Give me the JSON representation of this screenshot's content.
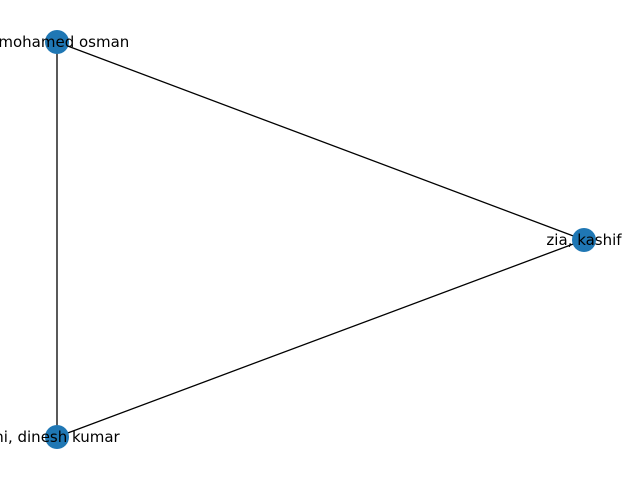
{
  "graph": {
    "node_color": "#1f77b4",
    "edge_color": "#000000",
    "nodes": [
      {
        "id": "n1",
        "label": "i, mohamed osman"
      },
      {
        "id": "n2",
        "label": "zia, kashif"
      },
      {
        "id": "n3",
        "label": "ni, dinesh kumar"
      }
    ],
    "edges": [
      {
        "source": "n1",
        "target": "n2"
      },
      {
        "source": "n1",
        "target": "n3"
      },
      {
        "source": "n3",
        "target": "n2"
      }
    ]
  }
}
